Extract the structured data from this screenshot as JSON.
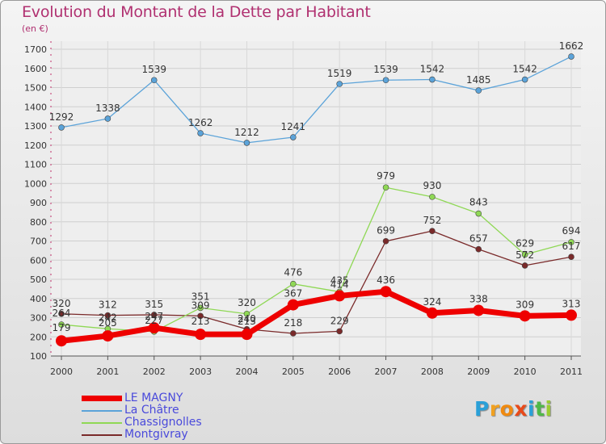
{
  "chart_data": {
    "type": "line",
    "title": "Evolution du Montant de la Dette par Habitant",
    "subtitle": "(en €)",
    "x": [
      "2000",
      "2001",
      "2002",
      "2003",
      "2004",
      "2005",
      "2006",
      "2007",
      "2008",
      "2009",
      "2010",
      "2011"
    ],
    "ylim": [
      100,
      1700
    ],
    "yticks": [
      100,
      200,
      300,
      400,
      500,
      600,
      700,
      800,
      900,
      1000,
      1100,
      1200,
      1300,
      1400,
      1500,
      1600,
      1700
    ],
    "grid": true,
    "legend_placement": "bottom-left",
    "series": [
      {
        "name": "LE MAGNY",
        "color": "#ee0000",
        "values": [
          179,
          205,
          247,
          213,
          213,
          367,
          414,
          436,
          324,
          338,
          309,
          313
        ],
        "labels": [
          "179",
          "205",
          "247",
          "213",
          "213",
          "367",
          "414",
          "436",
          "324",
          "338",
          "309",
          "313"
        ]
      },
      {
        "name": "La Châtre",
        "color": "#5ba3d9",
        "values": [
          1292,
          1338,
          1539,
          1262,
          1212,
          1241,
          1519,
          1539,
          1542,
          1485,
          1542,
          1662
        ],
        "labels": [
          "1292",
          "1338",
          "1539",
          "1262",
          "1212",
          "1241",
          "1519",
          "1539",
          "1542",
          "1485",
          "1542",
          "1662"
        ]
      },
      {
        "name": "Chassignolles",
        "color": "#8fd855",
        "values": [
          264,
          242,
          227,
          351,
          320,
          476,
          435,
          979,
          930,
          843,
          629,
          694
        ],
        "labels": [
          "264",
          "242",
          "227",
          "351",
          "320",
          "476",
          "435",
          "979",
          "930",
          "843",
          "629",
          "694"
        ]
      },
      {
        "name": "Montgivray",
        "color": "#7a2a2a",
        "values": [
          320,
          312,
          315,
          309,
          240,
          218,
          229,
          699,
          752,
          657,
          572,
          617
        ],
        "labels": [
          "320",
          "312",
          "315",
          "309",
          "240",
          "218",
          "229",
          "699",
          "752",
          "657",
          "572",
          "617"
        ]
      }
    ]
  },
  "logo": {
    "letters": [
      {
        "ch": "P",
        "color": "#2aa0d8"
      },
      {
        "ch": "r",
        "color": "#f0a020"
      },
      {
        "ch": "o",
        "color": "#f08a10"
      },
      {
        "ch": "x",
        "color": "#e84a1a"
      },
      {
        "ch": "i",
        "color": "#2aa0d8"
      },
      {
        "ch": "t",
        "color": "#4fb848"
      },
      {
        "ch": "i",
        "color": "#9acd32"
      }
    ]
  }
}
